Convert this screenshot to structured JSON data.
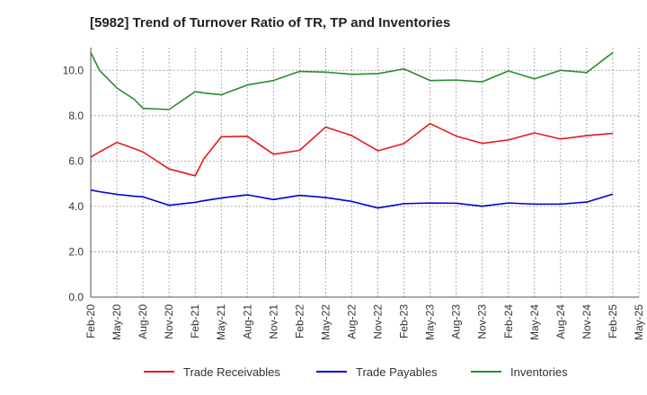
{
  "chart_data": {
    "type": "line",
    "title": "[5982]  Trend of Turnover Ratio of TR, TP and Inventories",
    "xlabel": "",
    "ylabel": "",
    "ylim": [
      0,
      11
    ],
    "yticks": [
      "0.0",
      "2.0",
      "4.0",
      "6.0",
      "8.0",
      "10.0"
    ],
    "ytick_values": [
      0,
      2,
      4,
      6,
      8,
      10
    ],
    "tick_labels": [
      "Feb-20",
      "May-20",
      "Aug-20",
      "Nov-20",
      "Feb-21",
      "May-21",
      "Aug-21",
      "Nov-21",
      "Feb-22",
      "May-22",
      "Aug-22",
      "Nov-22",
      "Feb-23",
      "May-23",
      "Aug-23",
      "Nov-23",
      "Feb-24",
      "May-24",
      "Aug-24",
      "Nov-24",
      "Feb-25",
      "May-25"
    ],
    "x": [
      "Feb-20",
      "Mar-20",
      "May-20",
      "Jul-20",
      "Aug-20",
      "Nov-20",
      "Feb-21",
      "Mar-21",
      "May-21",
      "Aug-21",
      "Nov-21",
      "Feb-22",
      "May-22",
      "Aug-22",
      "Nov-22",
      "Feb-23",
      "May-23",
      "Aug-23",
      "Nov-23",
      "Feb-24",
      "May-24",
      "Aug-24",
      "Nov-24",
      "Feb-25"
    ],
    "grid": true,
    "legend_position": "bottom",
    "series": [
      {
        "name": "Trade Receivables",
        "color": "#e31a1c",
        "values": [
          6.17,
          6.4,
          6.82,
          6.55,
          6.4,
          5.65,
          5.35,
          6.1,
          7.07,
          7.09,
          6.3,
          6.47,
          7.5,
          7.12,
          6.45,
          6.77,
          7.65,
          7.1,
          6.78,
          6.93,
          7.24,
          6.97,
          7.12,
          7.22
        ]
      },
      {
        "name": "Trade Payables",
        "color": "#0000cc",
        "values": [
          4.72,
          4.65,
          4.53,
          4.45,
          4.42,
          4.05,
          4.18,
          4.25,
          4.37,
          4.51,
          4.3,
          4.49,
          4.39,
          4.22,
          3.93,
          4.12,
          4.15,
          4.14,
          4.01,
          4.15,
          4.1,
          4.1,
          4.19,
          4.54
        ]
      },
      {
        "name": "Inventories",
        "color": "#2b8a2b",
        "values": [
          10.78,
          10.0,
          9.22,
          8.72,
          8.32,
          8.27,
          9.06,
          9.0,
          8.92,
          9.35,
          9.55,
          9.95,
          9.92,
          9.82,
          9.85,
          10.06,
          9.55,
          9.57,
          9.49,
          9.97,
          9.62,
          10.0,
          9.9,
          10.78
        ]
      }
    ]
  }
}
